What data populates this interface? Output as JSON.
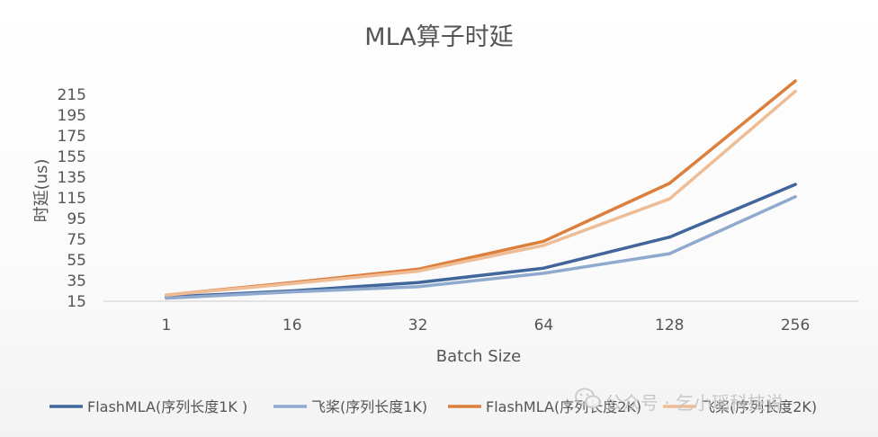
{
  "chart_data": {
    "type": "line",
    "title": "MLA算子时延",
    "xlabel": "Batch Size",
    "ylabel": "时延(us)",
    "categories": [
      "1",
      "16",
      "32",
      "64",
      "128",
      "256"
    ],
    "y_ticks": [
      15,
      35,
      55,
      75,
      95,
      115,
      135,
      155,
      175,
      195,
      215
    ],
    "ylim": [
      15,
      228
    ],
    "grid": false,
    "legend_position": "bottom",
    "series": [
      {
        "name": "FlashMLA(序列长度1K )",
        "color": "#41669b",
        "values": [
          19,
          25,
          33,
          47,
          77,
          128
        ]
      },
      {
        "name": "飞桨(序列长度1K)",
        "color": "#8fa9cf",
        "values": [
          18,
          24,
          29,
          42,
          61,
          116
        ]
      },
      {
        "name": "FlashMLA(序列长度2K)",
        "color": "#dc7f3c",
        "values": [
          21,
          33,
          46,
          73,
          129,
          228
        ]
      },
      {
        "name": "飞桨(序列长度2K)",
        "color": "#eebd96",
        "values": [
          21,
          32,
          44,
          69,
          114,
          218
        ]
      }
    ]
  },
  "watermark": "公众号 · 乞小瑶科技说"
}
